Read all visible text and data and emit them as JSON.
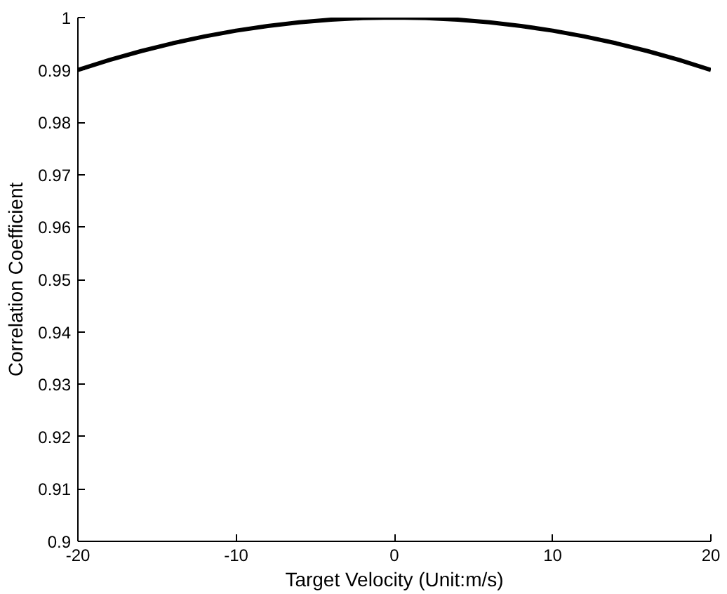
{
  "chart_data": {
    "type": "line",
    "xlabel": "Target Velocity (Unit:m/s)",
    "ylabel": "Correlation Coefficient",
    "x": [
      -20,
      -18,
      -16,
      -14,
      -12,
      -10,
      -8,
      -6,
      -4,
      -2,
      0,
      2,
      4,
      6,
      8,
      10,
      12,
      14,
      16,
      18,
      20
    ],
    "series": [
      {
        "color": "#000000",
        "values": [
          0.99,
          0.9919,
          0.9936,
          0.9951,
          0.9964,
          0.9975,
          0.9984,
          0.9991,
          0.9996,
          0.9999,
          1.0,
          0.9999,
          0.9996,
          0.9991,
          0.9984,
          0.9975,
          0.9964,
          0.9951,
          0.9936,
          0.9919,
          0.99
        ]
      }
    ],
    "xlim": [
      -20,
      20
    ],
    "xticks": [
      -20,
      -10,
      0,
      10,
      20
    ],
    "ylim": [
      0.9,
      1.0
    ],
    "yticks": [
      {
        "value": 0.9,
        "label": "0.9"
      },
      0.91,
      0.92,
      0.93,
      0.94,
      0.95,
      0.96,
      0.97,
      0.98,
      0.99,
      {
        "value": 1.0,
        "label": "1"
      }
    ],
    "grid": false,
    "line_style": "solid",
    "marker": "none"
  }
}
